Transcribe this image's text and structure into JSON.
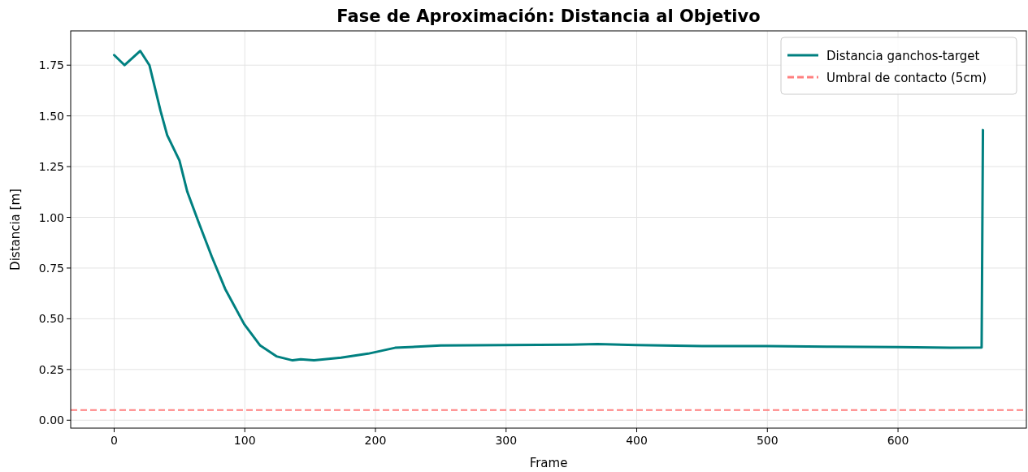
{
  "chart_data": {
    "type": "line",
    "title": "Fase de Aproximación: Distancia al Objetivo",
    "xlabel": "Frame",
    "ylabel": "Distancia [m]",
    "series": [
      {
        "name": "Distancia ganchos-target",
        "color": "#008080",
        "x": [
          0,
          8,
          20,
          27,
          35.5,
          40.6,
          50,
          56,
          64.4,
          74.7,
          85,
          99.5,
          111.8,
          124.2,
          136.6,
          142.8,
          153,
          173.7,
          194.4,
          215,
          250,
          300,
          350,
          370,
          400,
          450,
          500,
          550,
          600,
          640,
          664,
          665
        ],
        "values": [
          1.8,
          1.75,
          1.82,
          1.75,
          1.525,
          1.405,
          1.28,
          1.126,
          0.98,
          0.807,
          0.647,
          0.474,
          0.368,
          0.315,
          0.295,
          0.3,
          0.295,
          0.308,
          0.328,
          0.357,
          0.368,
          0.37,
          0.372,
          0.375,
          0.37,
          0.365,
          0.365,
          0.362,
          0.36,
          0.357,
          0.358,
          1.43
        ]
      }
    ],
    "ref_lines": [
      {
        "axis": "y",
        "value": 0.05,
        "label": "Umbral de contacto (5cm)",
        "color": "#ff7f7f",
        "line_style": "dashed"
      }
    ],
    "xlim": [
      -33.25,
      698.25
    ],
    "ylim": [
      -0.039,
      1.919
    ],
    "xticks": [
      0,
      100,
      200,
      300,
      400,
      500,
      600
    ],
    "yticks": [
      {
        "value": 0,
        "label": "0.00"
      },
      {
        "value": 0.25,
        "label": "0.25"
      },
      {
        "value": 0.5,
        "label": "0.50"
      },
      {
        "value": 0.75,
        "label": "0.75"
      },
      {
        "value": 1,
        "label": "1.00"
      },
      {
        "value": 1.25,
        "label": "1.25"
      },
      {
        "value": 1.5,
        "label": "1.50"
      },
      {
        "value": 1.75,
        "label": "1.75"
      }
    ],
    "grid": true,
    "legend": "top right",
    "line_style": "solid",
    "marker": "none"
  }
}
